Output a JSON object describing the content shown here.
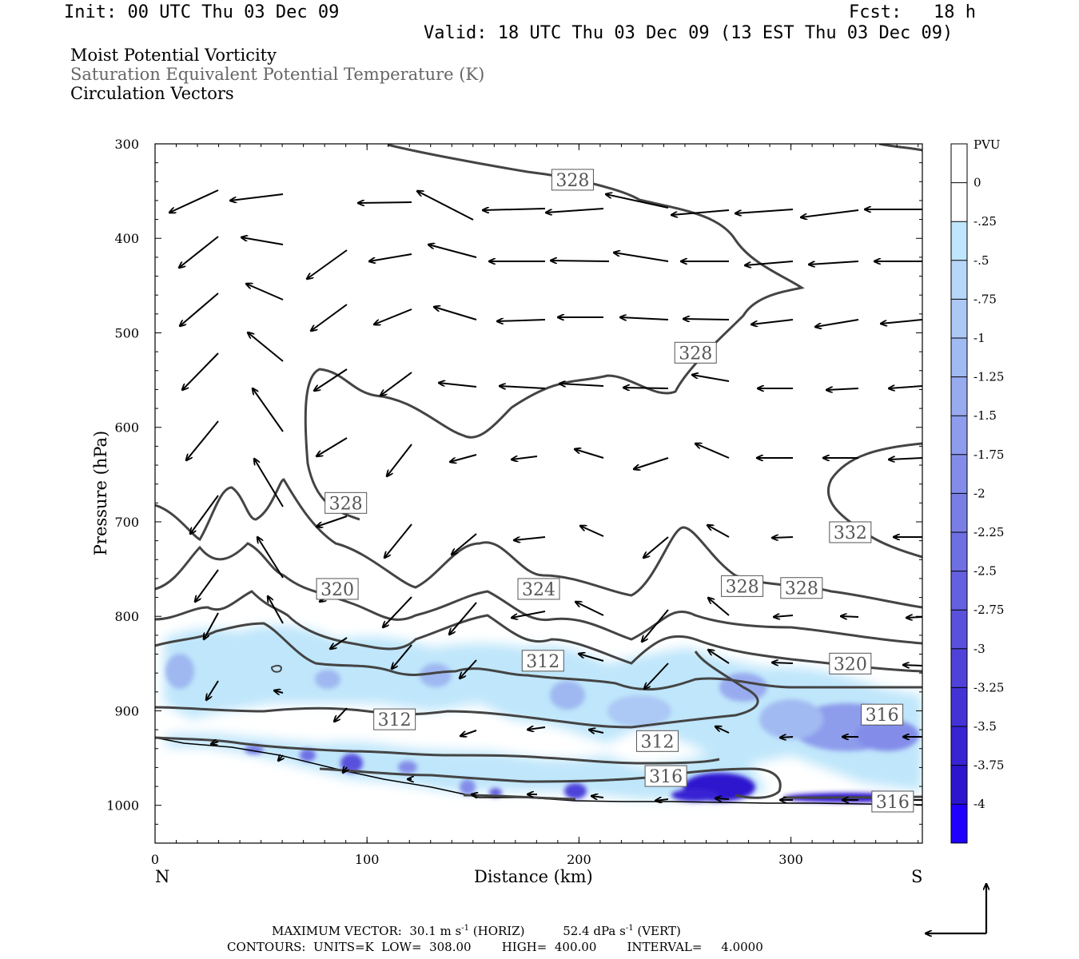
{
  "header": {
    "init": "Init: 00 UTC Thu 03 Dec 09",
    "fcst_label": "Fcst:",
    "fcst_value": "18 h",
    "valid": "Valid: 18 UTC Thu 03 Dec 09 (13 EST Thu 03 Dec 09)"
  },
  "legend_titles": {
    "line1": "Moist Potential Vorticity",
    "line2": "Saturation Equivalent Potential Temperature (K)",
    "line3": "Circulation Vectors"
  },
  "footer": {
    "max_vector_label": "MAXIMUM VECTOR:",
    "horiz": "30.1 m s",
    "horiz_unit": "(HORIZ)",
    "vert": "52.4 dPa s",
    "vert_unit": "(VERT)",
    "contours": "CONTOURS:  UNITS=K  LOW=  308.00        HIGH=  400.00        INTERVAL=     4.0000"
  },
  "colors": {
    "contour": "#444444",
    "vector": "#000000",
    "terrain": "#000000"
  },
  "chart_data": {
    "type": "cross-section",
    "title": "Moist Potential Vorticity / Saturation Equivalent Potential Temperature (K) / Circulation Vectors",
    "xlabel": "Distance (km)",
    "ylabel": "Pressure (hPa)",
    "xlim": [
      0,
      362
    ],
    "ylim": [
      1040,
      300
    ],
    "x_ticks": [
      0,
      100,
      200,
      300
    ],
    "x_tick_labels": [
      "0",
      "100",
      "200",
      "300"
    ],
    "y_ticks": [
      300,
      400,
      500,
      600,
      700,
      800,
      900,
      1000
    ],
    "y_tick_labels": [
      "300",
      "400",
      "500",
      "600",
      "700",
      "800",
      "900",
      "1000"
    ],
    "endpoints": {
      "left": "N",
      "right": "S"
    },
    "colorbar": {
      "units": "PVU",
      "labels": [
        "0",
        "-.25",
        "-.5",
        "-.75",
        "-1",
        "-1.25",
        "-1.5",
        "-1.75",
        "-2",
        "-2.25",
        "-2.5",
        "-2.75",
        "-3",
        "-3.25",
        "-3.5",
        "-3.75",
        "-4"
      ],
      "colors": [
        "#ffffff",
        "#ffffff",
        "#bfe6fb",
        "#b6d7f8",
        "#acc8f5",
        "#a2baf2",
        "#98abef",
        "#8e9cec",
        "#838de9",
        "#797ee5",
        "#6e6fe2",
        "#6460df",
        "#5951dc",
        "#4e42d9",
        "#4333d6",
        "#3824d3",
        "#2d15cf",
        "#1f00ff"
      ]
    },
    "contour_labels": [
      {
        "text": "328",
        "x": 197,
        "p": 338
      },
      {
        "text": "328",
        "x": 255,
        "p": 521
      },
      {
        "text": "328",
        "x": 90,
        "p": 680
      },
      {
        "text": "332",
        "x": 328,
        "p": 711
      },
      {
        "text": "320",
        "x": 86,
        "p": 771
      },
      {
        "text": "324",
        "x": 181,
        "p": 771
      },
      {
        "text": "328",
        "x": 277,
        "p": 768
      },
      {
        "text": "328",
        "x": 305,
        "p": 770
      },
      {
        "text": "312",
        "x": 183,
        "p": 847
      },
      {
        "text": "320",
        "x": 328,
        "p": 850
      },
      {
        "text": "316",
        "x": 343,
        "p": 904
      },
      {
        "text": "312",
        "x": 113,
        "p": 909
      },
      {
        "text": "312",
        "x": 237,
        "p": 932
      },
      {
        "text": "316",
        "x": 241,
        "p": 969
      },
      {
        "text": "316",
        "x": 348,
        "p": 996
      }
    ]
  }
}
